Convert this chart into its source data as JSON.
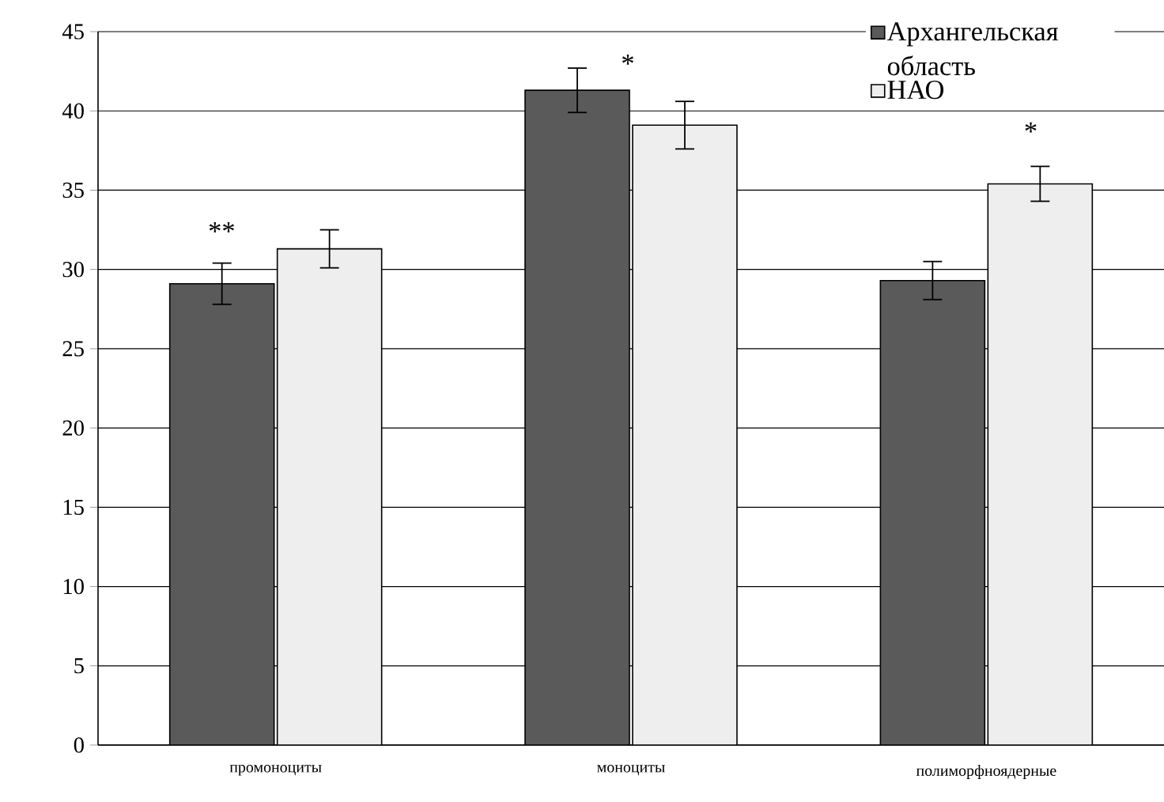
{
  "chart_data": {
    "type": "bar",
    "categories": [
      "промоноциты",
      "моноциты",
      "полиморфноядерные"
    ],
    "series": [
      {
        "name": "Архангельская область",
        "color": "#5a5a5a",
        "values": [
          29.1,
          41.3,
          29.3
        ],
        "errors": [
          1.3,
          1.4,
          1.2
        ]
      },
      {
        "name": "НАО",
        "color": "#eeeeee",
        "values": [
          31.3,
          39.1,
          35.4
        ],
        "errors": [
          1.2,
          1.5,
          1.1
        ]
      }
    ],
    "ylim": [
      0,
      45
    ],
    "yticks": [
      0,
      5,
      10,
      15,
      20,
      25,
      30,
      35,
      40,
      45
    ],
    "grid": "y",
    "legend": "top right",
    "annotations": [
      "**",
      "*",
      "*"
    ]
  }
}
